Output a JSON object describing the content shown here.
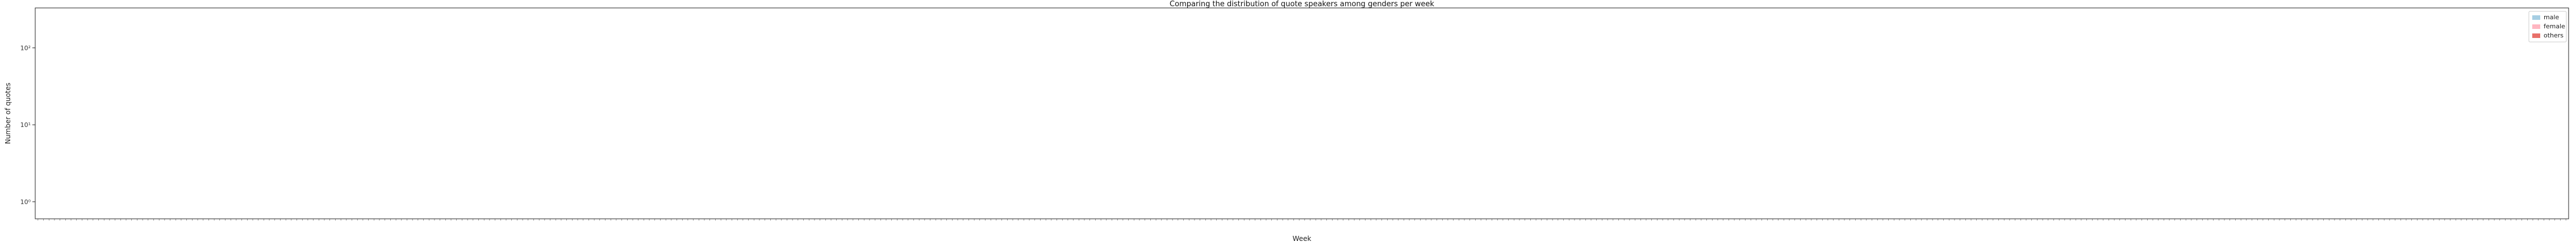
{
  "chart_data": {
    "type": "bar",
    "title": "Comparing the distribution of quote speakers among genders per week",
    "xlabel": "Week",
    "ylabel": "Number of quotes",
    "yscale": "log",
    "ylim": [
      0.6,
      330
    ],
    "y_ticks": [
      1,
      10,
      100
    ],
    "y_tick_labels": [
      "10⁰",
      "10¹",
      "10²"
    ],
    "grid": false,
    "legend_position": "top-right",
    "categories": [],
    "series": [
      {
        "name": "male",
        "color": "#a6cee3",
        "stacked_base": "female"
      },
      {
        "name": "female",
        "color": "#ffb6c1",
        "stacked_base": null
      },
      {
        "name": "others",
        "color": "#hue-gradient",
        "stacked_base": null
      }
    ],
    "legend": [
      {
        "label": "male",
        "color": "#a6cee3"
      },
      {
        "label": "female",
        "color": "#ffb6c1"
      },
      {
        "label": "others",
        "color": "#e8706a"
      }
    ],
    "colors": {
      "male": "#a6cee3",
      "female": "#ffb6c1",
      "others_start": "#e8706a",
      "others_end": "#e64fd4"
    }
  }
}
